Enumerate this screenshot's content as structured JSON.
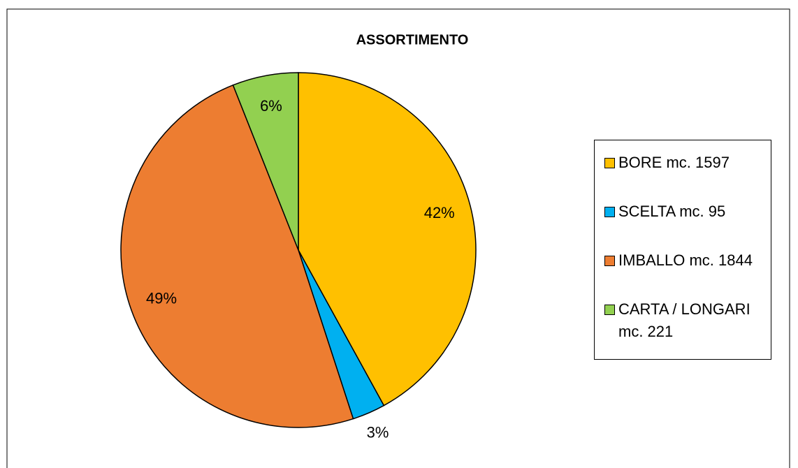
{
  "chart_data": {
    "type": "pie",
    "title": "ASSORTIMENTO",
    "categories": [
      "BORE mc.  1597",
      "SCELTA mc. 95",
      "IMBALLO mc. 1844",
      "CARTA / LONGARI mc. 221"
    ],
    "values": [
      42,
      3,
      49,
      6
    ],
    "value_labels": [
      "42%",
      "3%",
      "49%",
      "6%"
    ],
    "colors": [
      "#FFC000",
      "#00B0F0",
      "#ED7D31",
      "#92D050"
    ],
    "legend": "right"
  }
}
